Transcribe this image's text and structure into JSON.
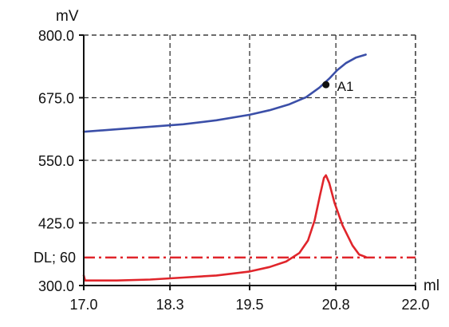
{
  "chart_data": {
    "type": "line",
    "xlabel": "ml",
    "ylabel": "mV",
    "xlim": [
      17.0,
      22.0
    ],
    "ylim": [
      300.0,
      800.0
    ],
    "x_ticks": [
      17.0,
      18.3,
      19.5,
      20.8,
      22.0
    ],
    "x_tick_labels": [
      "17.0",
      "18.3",
      "19.5",
      "20.8",
      "22.0"
    ],
    "y_ticks": [
      300.0,
      425.0,
      550.0,
      675.0,
      800.0
    ],
    "y_tick_labels": [
      "300.0",
      "425.0",
      "550.0",
      "675.0",
      "800.0"
    ],
    "grid": true,
    "series": [
      {
        "color": "#3b4fa8",
        "points": [
          [
            17.0,
            607
          ],
          [
            17.5,
            612
          ],
          [
            18.0,
            617
          ],
          [
            18.5,
            622
          ],
          [
            19.0,
            630
          ],
          [
            19.5,
            641
          ],
          [
            19.8,
            650
          ],
          [
            20.1,
            662
          ],
          [
            20.35,
            676
          ],
          [
            20.55,
            695
          ],
          [
            20.7,
            713
          ],
          [
            20.82,
            730
          ],
          [
            20.95,
            744
          ],
          [
            21.1,
            755
          ],
          [
            21.25,
            761
          ]
        ]
      },
      {
        "color": "#e0252b",
        "points": [
          [
            17.0,
            320
          ],
          [
            17.02,
            310
          ],
          [
            17.5,
            310
          ],
          [
            18.0,
            312
          ],
          [
            18.5,
            316
          ],
          [
            19.0,
            320
          ],
          [
            19.5,
            328
          ],
          [
            19.8,
            337
          ],
          [
            20.05,
            348
          ],
          [
            20.25,
            365
          ],
          [
            20.38,
            390
          ],
          [
            20.48,
            430
          ],
          [
            20.56,
            480
          ],
          [
            20.62,
            515
          ],
          [
            20.65,
            520
          ],
          [
            20.7,
            505
          ],
          [
            20.78,
            465
          ],
          [
            20.9,
            420
          ],
          [
            21.05,
            380
          ],
          [
            21.15,
            362
          ],
          [
            21.25,
            357
          ]
        ]
      }
    ],
    "reference_line": {
      "label": "DL; 60",
      "value": 356,
      "color": "#e0252b",
      "style": "dash-dot"
    },
    "annotations": [
      {
        "label": "A1",
        "x": 20.65,
        "y": 701
      }
    ]
  }
}
